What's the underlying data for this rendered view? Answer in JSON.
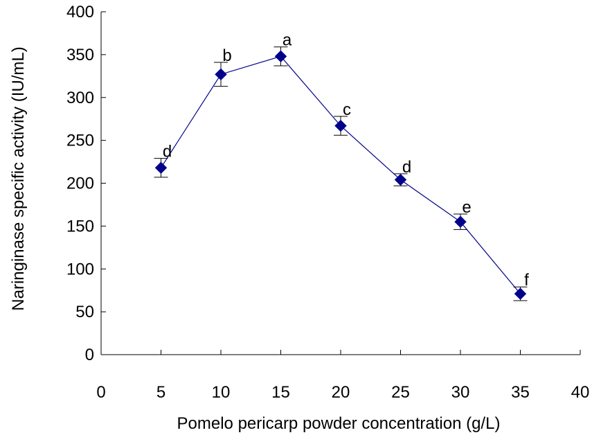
{
  "chart_data": {
    "type": "line",
    "title": "",
    "xlabel": "Pomelo pericarp powder concentration (g/L)",
    "ylabel": "Naringinase specific activity (IU/mL)",
    "xlim": [
      0,
      40
    ],
    "ylim": [
      0,
      400
    ],
    "x_ticks": [
      0,
      5,
      10,
      15,
      20,
      25,
      30,
      35,
      40
    ],
    "y_ticks": [
      0,
      50,
      100,
      150,
      200,
      250,
      300,
      350,
      400
    ],
    "x_tick_labels": [
      "0",
      "5",
      "10",
      "15",
      "20",
      "25",
      "30",
      "35",
      "40"
    ],
    "y_tick_labels": [
      "0",
      "50",
      "100",
      "150",
      "200",
      "250",
      "300",
      "350",
      "400"
    ],
    "grid": false,
    "legend": "none",
    "series": [
      {
        "color": "#00008B",
        "marker": "diamond",
        "x": [
          5,
          10,
          15,
          20,
          25,
          30,
          35
        ],
        "y": [
          218,
          327,
          348,
          267,
          204,
          155,
          71
        ],
        "error": [
          11,
          14,
          11,
          11,
          7,
          9,
          8
        ],
        "annotations": [
          "d",
          "b",
          "a",
          "c",
          "d",
          "e",
          "f"
        ]
      }
    ]
  }
}
